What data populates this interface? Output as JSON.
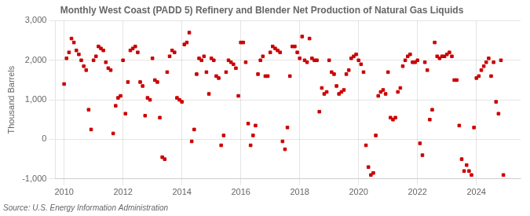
{
  "chart_data": {
    "type": "scatter",
    "title": "Monthly West Coast (PADD 5) Refinery and Blender Net Production of Natural Gas Liquids",
    "ylabel": "Thousand Barrels",
    "source": "Source: U.S. Energy Information Administration",
    "color": "#cc0000",
    "marker": "square",
    "grid": true,
    "xlim": [
      2009.7,
      2025.5
    ],
    "xticks": [
      2010,
      2012,
      2014,
      2016,
      2018,
      2020,
      2022,
      2024
    ],
    "ylim": [
      -1000,
      3000
    ],
    "yticks": [
      {
        "value": -1000,
        "label": "-1,000"
      },
      0,
      {
        "value": 1000,
        "label": "1,000"
      },
      {
        "value": 2000,
        "label": "2,000"
      },
      {
        "value": 3000,
        "label": "3,000"
      }
    ],
    "x": [
      2010.0,
      2010.083,
      2010.167,
      2010.25,
      2010.333,
      2010.417,
      2010.5,
      2010.583,
      2010.667,
      2010.75,
      2010.833,
      2010.917,
      2011.0,
      2011.083,
      2011.167,
      2011.25,
      2011.333,
      2011.417,
      2011.5,
      2011.583,
      2011.667,
      2011.75,
      2011.833,
      2011.917,
      2012.0,
      2012.083,
      2012.167,
      2012.25,
      2012.333,
      2012.417,
      2012.5,
      2012.583,
      2012.667,
      2012.75,
      2012.833,
      2012.917,
      2013.0,
      2013.083,
      2013.167,
      2013.25,
      2013.333,
      2013.417,
      2013.5,
      2013.583,
      2013.667,
      2013.75,
      2013.833,
      2013.917,
      2014.0,
      2014.083,
      2014.167,
      2014.25,
      2014.333,
      2014.417,
      2014.5,
      2014.583,
      2014.667,
      2014.75,
      2014.833,
      2014.917,
      2015.0,
      2015.083,
      2015.167,
      2015.25,
      2015.333,
      2015.417,
      2015.5,
      2015.583,
      2015.667,
      2015.75,
      2015.833,
      2015.917,
      2016.0,
      2016.083,
      2016.167,
      2016.25,
      2016.333,
      2016.417,
      2016.5,
      2016.583,
      2016.667,
      2016.75,
      2016.833,
      2016.917,
      2017.0,
      2017.083,
      2017.167,
      2017.25,
      2017.333,
      2017.417,
      2017.5,
      2017.583,
      2017.667,
      2017.75,
      2017.833,
      2017.917,
      2018.0,
      2018.083,
      2018.167,
      2018.25,
      2018.333,
      2018.417,
      2018.5,
      2018.583,
      2018.667,
      2018.75,
      2018.833,
      2018.917,
      2019.0,
      2019.083,
      2019.167,
      2019.25,
      2019.333,
      2019.417,
      2019.5,
      2019.583,
      2019.667,
      2019.75,
      2019.833,
      2019.917,
      2020.0,
      2020.083,
      2020.167,
      2020.25,
      2020.333,
      2020.417,
      2020.5,
      2020.583,
      2020.667,
      2020.75,
      2020.833,
      2020.917,
      2021.0,
      2021.083,
      2021.167,
      2021.25,
      2021.333,
      2021.417,
      2021.5,
      2021.583,
      2021.667,
      2021.75,
      2021.833,
      2021.917,
      2022.0,
      2022.083,
      2022.167,
      2022.25,
      2022.333,
      2022.417,
      2022.5,
      2022.583,
      2022.667,
      2022.75,
      2022.833,
      2022.917,
      2023.0,
      2023.083,
      2023.167,
      2023.25,
      2023.333,
      2023.417,
      2023.5,
      2023.583,
      2023.667,
      2023.75,
      2023.833,
      2023.917,
      2024.0,
      2024.083,
      2024.167,
      2024.25,
      2024.333,
      2024.417,
      2024.5,
      2024.583,
      2024.667,
      2024.75,
      2024.833,
      2024.917
    ],
    "values": [
      1400,
      2050,
      2200,
      2550,
      2450,
      2250,
      2150,
      2000,
      1850,
      1750,
      750,
      250,
      2000,
      2100,
      2350,
      2300,
      2250,
      1950,
      1800,
      1750,
      150,
      850,
      1050,
      1100,
      2000,
      650,
      1450,
      2250,
      2300,
      2350,
      2200,
      1450,
      1350,
      600,
      1050,
      1000,
      2050,
      1500,
      1450,
      550,
      -450,
      -500,
      1700,
      2100,
      2250,
      2200,
      1050,
      1000,
      950,
      2400,
      2450,
      2700,
      -50,
      250,
      1650,
      2050,
      2000,
      2100,
      1700,
      1150,
      2050,
      2000,
      1600,
      1550,
      -150,
      100,
      1700,
      2000,
      1950,
      1900,
      1800,
      1100,
      2450,
      2450,
      1950,
      400,
      -150,
      100,
      350,
      1650,
      2000,
      2100,
      1600,
      1600,
      2200,
      2350,
      2300,
      2250,
      2200,
      -50,
      -250,
      300,
      1600,
      2350,
      2350,
      2200,
      2050,
      2600,
      2000,
      1950,
      2550,
      2050,
      2000,
      2000,
      700,
      1300,
      1150,
      1200,
      2000,
      1700,
      1650,
      1350,
      1150,
      1200,
      1250,
      1650,
      1750,
      2050,
      2100,
      2150,
      2000,
      1900,
      1700,
      -150,
      -700,
      -900,
      -850,
      100,
      1100,
      1200,
      1250,
      1150,
      1700,
      550,
      500,
      550,
      1200,
      1300,
      1850,
      2000,
      2100,
      2150,
      1950,
      1950,
      2000,
      -100,
      -400,
      1950,
      1750,
      500,
      750,
      2450,
      2100,
      2050,
      2100,
      2100,
      2150,
      2200,
      2100,
      1500,
      1500,
      350,
      -500,
      -800,
      -650,
      -800,
      -900,
      300,
      1550,
      1600,
      1750,
      1850,
      1950,
      2050,
      1600,
      1950,
      950,
      650,
      2000,
      -900
    ]
  }
}
